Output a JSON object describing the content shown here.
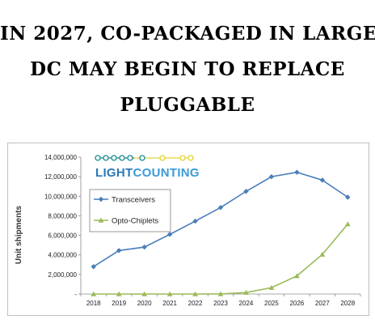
{
  "headline": {
    "line1": "IN 2027, CO-PACKAGED IN LARGE",
    "line2": "DC MAY BEGIN TO REPLACE",
    "line3": "PLUGGABLE"
  },
  "logo": {
    "part1": "LIGHT",
    "part2": "COUNTING",
    "color_light": "#2b78b7",
    "color_counting": "#3a9ad9",
    "beads_teal": "#1b8a8f",
    "beads_yellow": "#e4d232"
  },
  "chart_data": {
    "type": "line",
    "categories": [
      "2018",
      "2019",
      "2020",
      "2021",
      "2022",
      "2023",
      "2024",
      "2025",
      "2026",
      "2027",
      "2028"
    ],
    "ylabel": "Unit shipments",
    "xlabel": "",
    "ylim": [
      0,
      14000000
    ],
    "yticks": [
      0,
      2000000,
      4000000,
      6000000,
      8000000,
      10000000,
      12000000,
      14000000
    ],
    "ytick_labels": [
      "-",
      "2,000,000",
      "4,000,000",
      "6,000,000",
      "8,000,000",
      "10,000,000",
      "12,000,000",
      "14,000,000"
    ],
    "grid": false,
    "legend_position": "left",
    "series": [
      {
        "name": "Transceivers",
        "color": "#4a7ebb",
        "marker": "diamond",
        "values": [
          2800000,
          4450000,
          4800000,
          6100000,
          7450000,
          8850000,
          10500000,
          12000000,
          12450000,
          11650000,
          9900000
        ]
      },
      {
        "name": "Opto-Chiplets",
        "color": "#9bbb59",
        "marker": "triangle",
        "values": [
          0,
          0,
          0,
          0,
          0,
          10000,
          150000,
          650000,
          1850000,
          4050000,
          7150000
        ]
      }
    ]
  }
}
